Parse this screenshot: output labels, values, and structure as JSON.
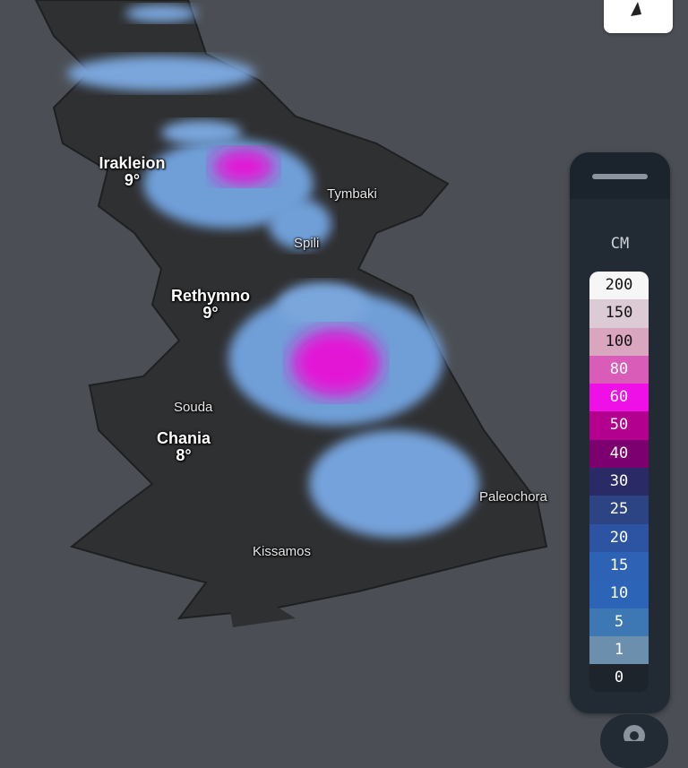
{
  "map": {
    "cities": [
      {
        "name": "Irakleion",
        "temp": "9°"
      },
      {
        "name": "Rethymno",
        "temp": "9°"
      },
      {
        "name": "Chania",
        "temp": "8°"
      }
    ],
    "towns": [
      "Tymbaki",
      "Spili",
      "Souda",
      "Paleochora",
      "Kissamos"
    ]
  },
  "compass": {
    "icon": "compass-arrow-icon"
  },
  "legend": {
    "unit": "CM",
    "steps": [
      {
        "label": "200",
        "color": "#f7f6f7",
        "text": "#111"
      },
      {
        "label": "150",
        "color": "#dccbd5",
        "text": "#111"
      },
      {
        "label": "100",
        "color": "#d9a6c0",
        "text": "#111"
      },
      {
        "label": "80",
        "color": "#d85cb8",
        "text": "#fff"
      },
      {
        "label": "60",
        "color": "#ee10e6",
        "text": "#fff"
      },
      {
        "label": "50",
        "color": "#b3008f",
        "text": "#fff"
      },
      {
        "label": "40",
        "color": "#7c0070",
        "text": "#fff"
      },
      {
        "label": "30",
        "color": "#2a2a66",
        "text": "#fff"
      },
      {
        "label": "25",
        "color": "#2c4384",
        "text": "#fff"
      },
      {
        "label": "20",
        "color": "#2d54a2",
        "text": "#fff"
      },
      {
        "label": "15",
        "color": "#2d62b4",
        "text": "#fff"
      },
      {
        "label": "10",
        "color": "#2c64b8",
        "text": "#fff"
      },
      {
        "label": "5",
        "color": "#3d78b4",
        "text": "#fff"
      },
      {
        "label": "1",
        "color": "#6c8fae",
        "text": "#fff"
      },
      {
        "label": "0",
        "color": "#1d242c",
        "text": "#fff"
      }
    ]
  },
  "settings": {
    "icon": "gear-icon"
  }
}
